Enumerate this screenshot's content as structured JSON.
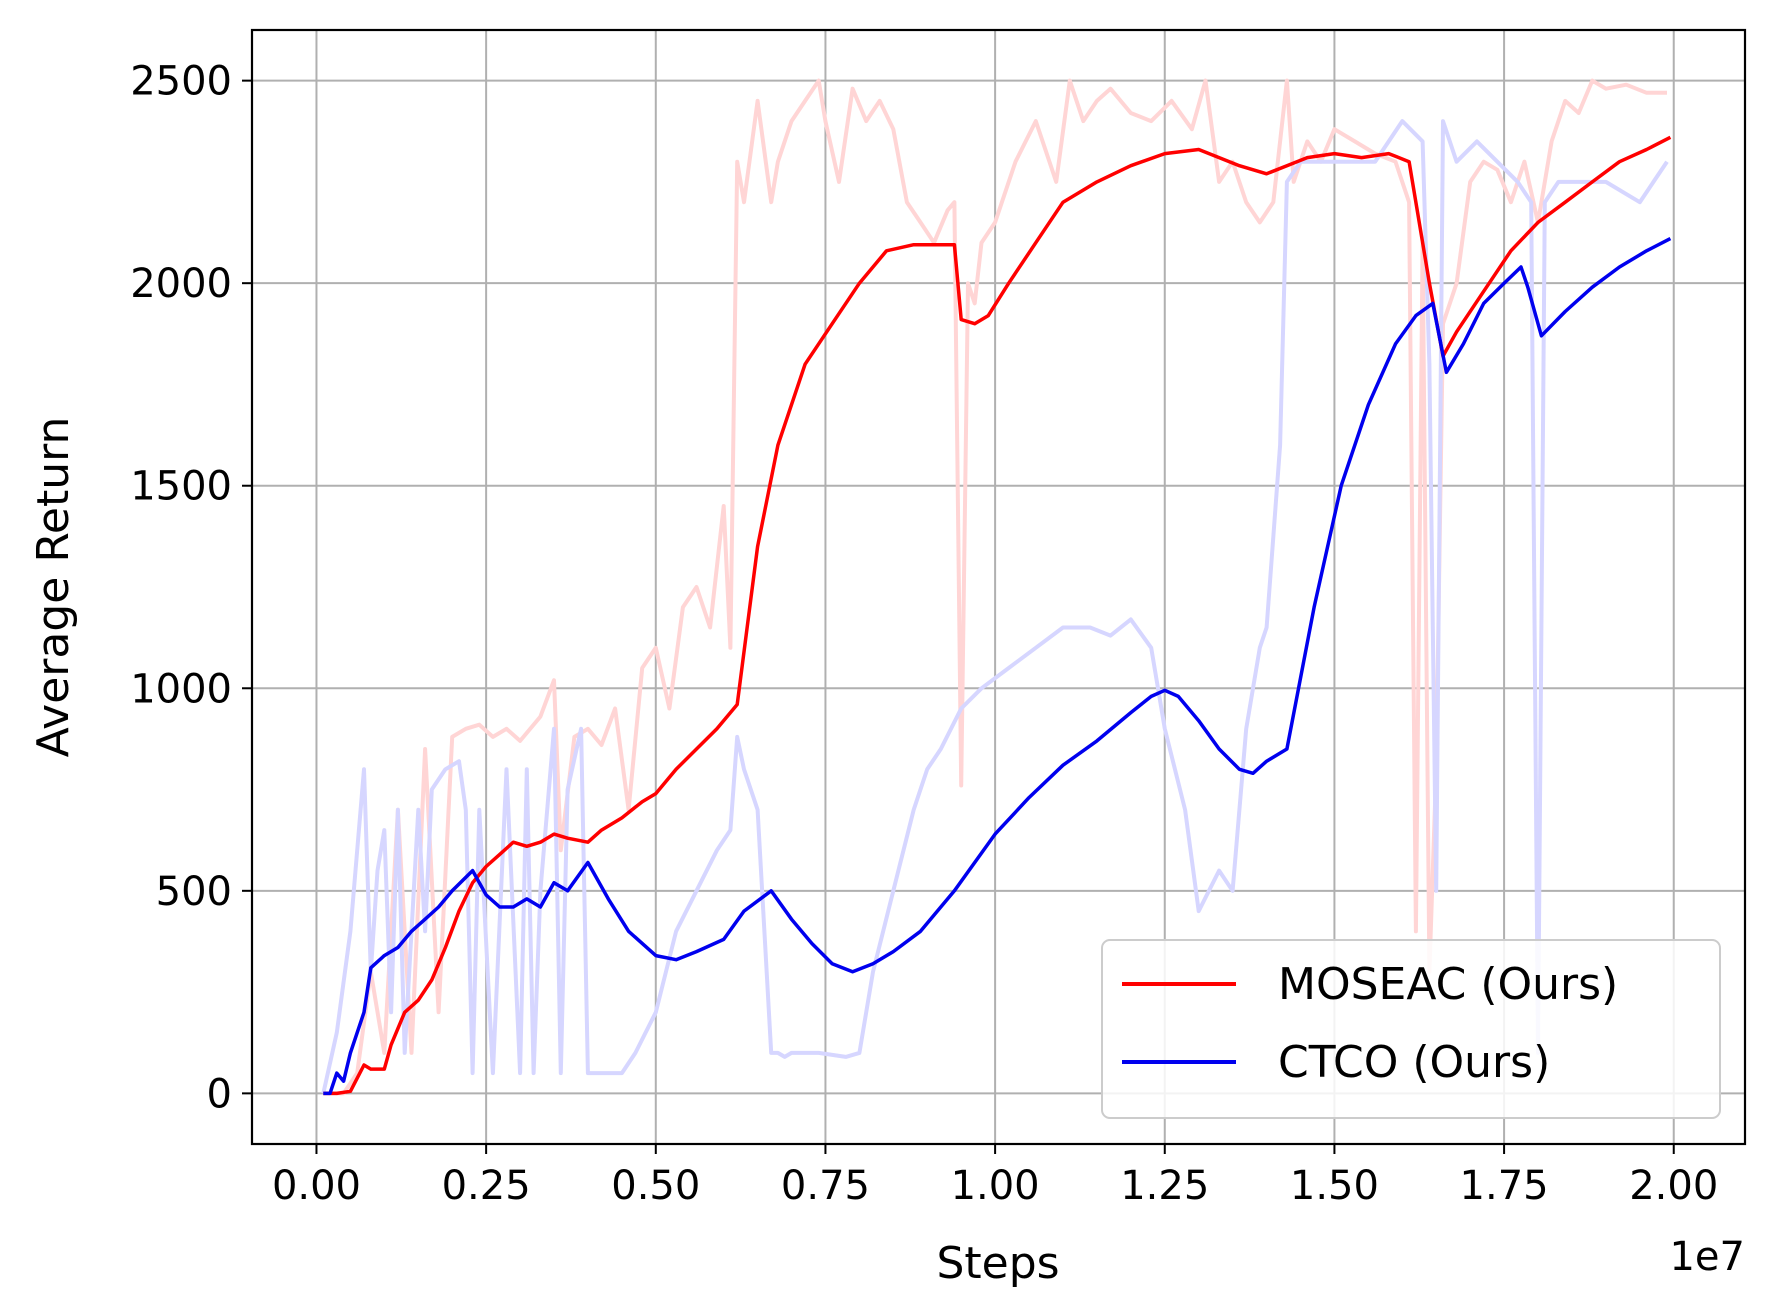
{
  "chart_data": {
    "type": "line",
    "title": "",
    "xlabel": "Steps",
    "ylabel": "Average Return",
    "x_offset_text": "1e7",
    "xlim": [
      -0.095,
      2.105
    ],
    "ylim": [
      -125,
      2625
    ],
    "x_ticks": [
      0.0,
      0.25,
      0.5,
      0.75,
      1.0,
      1.25,
      1.5,
      1.75,
      2.0
    ],
    "x_tick_labels": [
      "0.00",
      "0.25",
      "0.50",
      "0.75",
      "1.00",
      "1.25",
      "1.50",
      "1.75",
      "2.00"
    ],
    "y_ticks": [
      0,
      500,
      1000,
      1500,
      2000,
      2500
    ],
    "y_tick_labels": [
      "0",
      "500",
      "1000",
      "1500",
      "2000",
      "2500"
    ],
    "grid": true,
    "legend": {
      "position": "lower-right"
    },
    "series": [
      {
        "name": "MOSEAC (Ours)",
        "color": "#ff0000",
        "raw_color": "#ffd5d5",
        "x": [
          0.01,
          0.03,
          0.05,
          0.07,
          0.08,
          0.1,
          0.11,
          0.13,
          0.15,
          0.17,
          0.19,
          0.21,
          0.23,
          0.25,
          0.27,
          0.29,
          0.31,
          0.33,
          0.35,
          0.37,
          0.4,
          0.42,
          0.45,
          0.48,
          0.5,
          0.53,
          0.56,
          0.59,
          0.62,
          0.65,
          0.68,
          0.72,
          0.76,
          0.8,
          0.84,
          0.88,
          0.92,
          0.94,
          0.95,
          0.97,
          0.99,
          1.02,
          1.06,
          1.1,
          1.15,
          1.2,
          1.25,
          1.3,
          1.33,
          1.36,
          1.4,
          1.43,
          1.46,
          1.5,
          1.54,
          1.58,
          1.61,
          1.64,
          1.66,
          1.68,
          1.72,
          1.76,
          1.8,
          1.84,
          1.88,
          1.92,
          1.96,
          1.995
        ],
        "y": [
          0,
          0,
          5,
          70,
          60,
          60,
          120,
          200,
          230,
          280,
          360,
          450,
          520,
          560,
          590,
          620,
          610,
          620,
          640,
          630,
          620,
          650,
          680,
          720,
          740,
          800,
          850,
          900,
          960,
          1350,
          1600,
          1800,
          1900,
          2000,
          2080,
          2095,
          2095,
          2095,
          1910,
          1900,
          1920,
          2000,
          2100,
          2200,
          2250,
          2290,
          2320,
          2330,
          2310,
          2290,
          2270,
          2290,
          2310,
          2320,
          2310,
          2320,
          2300,
          2000,
          1820,
          1880,
          1980,
          2080,
          2150,
          2200,
          2250,
          2300,
          2330,
          2360
        ],
        "raw_x": [
          0.01,
          0.04,
          0.06,
          0.08,
          0.1,
          0.12,
          0.14,
          0.16,
          0.18,
          0.2,
          0.22,
          0.24,
          0.26,
          0.28,
          0.3,
          0.33,
          0.35,
          0.36,
          0.38,
          0.4,
          0.42,
          0.44,
          0.46,
          0.48,
          0.5,
          0.52,
          0.54,
          0.56,
          0.58,
          0.6,
          0.61,
          0.62,
          0.63,
          0.65,
          0.67,
          0.68,
          0.7,
          0.72,
          0.74,
          0.75,
          0.77,
          0.79,
          0.81,
          0.83,
          0.85,
          0.87,
          0.89,
          0.91,
          0.93,
          0.94,
          0.95,
          0.96,
          0.97,
          0.98,
          1.0,
          1.03,
          1.06,
          1.09,
          1.11,
          1.13,
          1.15,
          1.17,
          1.2,
          1.23,
          1.26,
          1.29,
          1.31,
          1.33,
          1.35,
          1.37,
          1.39,
          1.41,
          1.43,
          1.44,
          1.46,
          1.48,
          1.5,
          1.53,
          1.56,
          1.59,
          1.61,
          1.62,
          1.63,
          1.64,
          1.65,
          1.66,
          1.68,
          1.7,
          1.72,
          1.74,
          1.76,
          1.78,
          1.8,
          1.82,
          1.84,
          1.86,
          1.88,
          1.9,
          1.93,
          1.96,
          1.99
        ],
        "raw_y": [
          0,
          0,
          50,
          300,
          100,
          700,
          100,
          850,
          200,
          880,
          900,
          910,
          880,
          900,
          870,
          930,
          1020,
          600,
          880,
          900,
          860,
          950,
          700,
          1050,
          1100,
          950,
          1200,
          1250,
          1150,
          1450,
          1100,
          2300,
          2200,
          2450,
          2200,
          2300,
          2400,
          2450,
          2500,
          2400,
          2250,
          2480,
          2400,
          2450,
          2380,
          2200,
          2150,
          2100,
          2180,
          2200,
          760,
          2000,
          1950,
          2100,
          2150,
          2300,
          2400,
          2250,
          2500,
          2400,
          2450,
          2480,
          2420,
          2400,
          2450,
          2380,
          2500,
          2250,
          2300,
          2200,
          2150,
          2200,
          2500,
          2250,
          2350,
          2300,
          2380,
          2350,
          2320,
          2300,
          2200,
          400,
          2100,
          300,
          800,
          1900,
          2000,
          2250,
          2300,
          2280,
          2200,
          2300,
          2150,
          2350,
          2450,
          2420,
          2500,
          2480,
          2490,
          2470,
          2470
        ]
      },
      {
        "name": "CTCO (Ours)",
        "color": "#0000ee",
        "raw_color": "#d6d6ff",
        "x": [
          0.01,
          0.02,
          0.03,
          0.04,
          0.05,
          0.07,
          0.08,
          0.1,
          0.12,
          0.14,
          0.16,
          0.18,
          0.2,
          0.23,
          0.25,
          0.27,
          0.29,
          0.31,
          0.33,
          0.35,
          0.37,
          0.4,
          0.43,
          0.46,
          0.5,
          0.53,
          0.56,
          0.6,
          0.63,
          0.67,
          0.7,
          0.73,
          0.76,
          0.79,
          0.82,
          0.85,
          0.89,
          0.94,
          1.0,
          1.05,
          1.1,
          1.15,
          1.2,
          1.23,
          1.25,
          1.27,
          1.3,
          1.33,
          1.36,
          1.38,
          1.4,
          1.43,
          1.47,
          1.51,
          1.55,
          1.59,
          1.62,
          1.645,
          1.665,
          1.69,
          1.72,
          1.75,
          1.775,
          1.785,
          1.805,
          1.84,
          1.88,
          1.92,
          1.96,
          1.995
        ],
        "y": [
          0,
          0,
          50,
          30,
          100,
          200,
          310,
          340,
          360,
          400,
          430,
          460,
          500,
          550,
          490,
          460,
          460,
          480,
          460,
          520,
          500,
          570,
          480,
          400,
          340,
          330,
          350,
          380,
          450,
          500,
          430,
          370,
          320,
          300,
          320,
          350,
          400,
          500,
          640,
          730,
          810,
          870,
          940,
          980,
          995,
          980,
          920,
          850,
          800,
          790,
          820,
          850,
          1200,
          1500,
          1700,
          1850,
          1920,
          1950,
          1780,
          1850,
          1950,
          2000,
          2040,
          1990,
          1870,
          1930,
          1990,
          2040,
          2080,
          2110
        ],
        "raw_x": [
          0.01,
          0.03,
          0.05,
          0.07,
          0.08,
          0.09,
          0.1,
          0.11,
          0.12,
          0.13,
          0.15,
          0.16,
          0.17,
          0.19,
          0.21,
          0.22,
          0.23,
          0.24,
          0.26,
          0.28,
          0.3,
          0.31,
          0.32,
          0.33,
          0.35,
          0.36,
          0.37,
          0.39,
          0.4,
          0.41,
          0.43,
          0.45,
          0.47,
          0.5,
          0.53,
          0.56,
          0.59,
          0.61,
          0.62,
          0.63,
          0.65,
          0.67,
          0.68,
          0.69,
          0.7,
          0.72,
          0.74,
          0.78,
          0.8,
          0.82,
          0.85,
          0.88,
          0.9,
          0.92,
          0.95,
          0.98,
          1.02,
          1.06,
          1.1,
          1.14,
          1.17,
          1.2,
          1.23,
          1.25,
          1.28,
          1.3,
          1.33,
          1.35,
          1.37,
          1.39,
          1.4,
          1.42,
          1.43,
          1.45,
          1.48,
          1.52,
          1.56,
          1.6,
          1.63,
          1.64,
          1.65,
          1.66,
          1.68,
          1.71,
          1.74,
          1.77,
          1.79,
          1.8,
          1.81,
          1.83,
          1.86,
          1.9,
          1.95,
          1.99
        ],
        "raw_y": [
          0,
          150,
          400,
          800,
          300,
          550,
          650,
          200,
          700,
          100,
          700,
          400,
          750,
          800,
          820,
          700,
          50,
          700,
          50,
          800,
          50,
          800,
          50,
          500,
          900,
          50,
          750,
          900,
          50,
          50,
          50,
          50,
          100,
          200,
          400,
          500,
          600,
          650,
          880,
          800,
          700,
          100,
          100,
          90,
          100,
          100,
          100,
          90,
          100,
          300,
          500,
          700,
          800,
          850,
          950,
          1000,
          1050,
          1100,
          1150,
          1150,
          1130,
          1170,
          1100,
          900,
          700,
          450,
          550,
          500,
          900,
          1100,
          1150,
          1600,
          2250,
          2300,
          2300,
          2300,
          2300,
          2400,
          2350,
          1800,
          500,
          2400,
          2300,
          2350,
          2300,
          2250,
          2200,
          100,
          2200,
          2250,
          2250,
          2250,
          2200,
          2300
        ]
      }
    ]
  }
}
